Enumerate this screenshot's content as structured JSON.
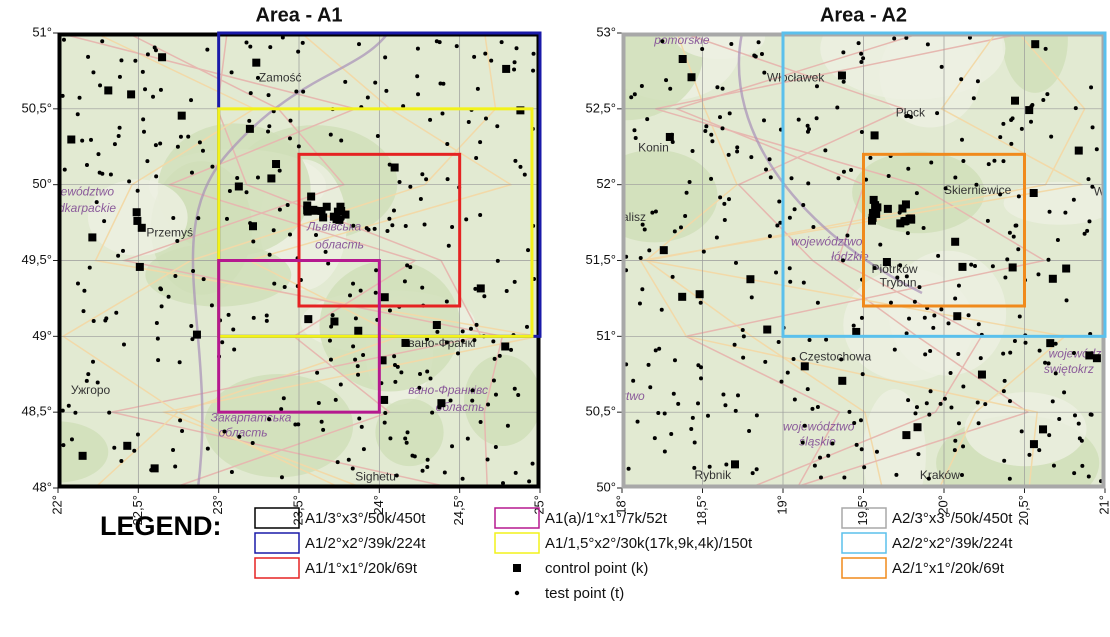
{
  "panels": [
    {
      "title": "Area - A1",
      "xlim": [
        22,
        25
      ],
      "ylim": [
        48,
        51
      ],
      "xticks": [
        {
          "value": 22,
          "label": "22°"
        },
        {
          "value": 22.5,
          "label": "22,5°"
        },
        {
          "value": 23,
          "label": "23°"
        },
        {
          "value": 23.5,
          "label": "23,5°"
        },
        {
          "value": 24,
          "label": "24°"
        },
        {
          "value": 24.5,
          "label": "24,5°"
        },
        {
          "value": 25,
          "label": "25°"
        }
      ],
      "yticks": [
        {
          "value": 48,
          "label": "48°"
        },
        {
          "value": 48.5,
          "label": "48,5°"
        },
        {
          "value": 49,
          "label": "49°"
        },
        {
          "value": 49.5,
          "label": "49,5°"
        },
        {
          "value": 50,
          "label": "50°"
        },
        {
          "value": 50.5,
          "label": "50,5°"
        },
        {
          "value": 51,
          "label": "51°"
        }
      ],
      "regions": [
        {
          "name": "A1/3°x3°/50k/450t",
          "color": "#000000",
          "bounds": [
            22,
            25,
            48,
            51
          ]
        },
        {
          "name": "A1/2°x2°/39k/224t",
          "color": "#1a1aa8",
          "bounds": [
            23,
            25,
            49,
            51
          ]
        },
        {
          "name": "A1/1,5°x2°/30k(17k,9k,4k)/150t",
          "color": "#f2f21a",
          "bounds": [
            23,
            24.95,
            49,
            50.5
          ]
        },
        {
          "name": "A1/1°x1°/20k/69t",
          "color": "#e52222",
          "bounds": [
            23.5,
            24.5,
            49.2,
            50.2
          ]
        },
        {
          "name": "A1(a)/1°x1°/7k/52t",
          "color": "#b5198f",
          "bounds": [
            23,
            24,
            48.5,
            49.5
          ]
        }
      ],
      "places": [
        {
          "text": "Zamość",
          "lon": 23.25,
          "lat": 50.7,
          "kind": "city"
        },
        {
          "text": "jewództwo",
          "lon": 22.0,
          "lat": 49.95,
          "kind": "region"
        },
        {
          "text": "dkarpackie",
          "lon": 22.0,
          "lat": 49.84,
          "kind": "region"
        },
        {
          "text": "Przemyś",
          "lon": 22.55,
          "lat": 49.68,
          "kind": "city"
        },
        {
          "text": "Львівська",
          "lon": 23.55,
          "lat": 49.72,
          "kind": "region"
        },
        {
          "text": "область",
          "lon": 23.6,
          "lat": 49.6,
          "kind": "region"
        },
        {
          "text": "Ужгоро",
          "lon": 22.08,
          "lat": 48.64,
          "kind": "city"
        },
        {
          "text": "Закарпатська",
          "lon": 22.95,
          "lat": 48.46,
          "kind": "region"
        },
        {
          "text": "область",
          "lon": 23.0,
          "lat": 48.36,
          "kind": "region"
        },
        {
          "text": "вано-Франкі",
          "lon": 24.18,
          "lat": 48.95,
          "kind": "city"
        },
        {
          "text": "вано-Франківс",
          "lon": 24.18,
          "lat": 48.64,
          "kind": "region"
        },
        {
          "text": "область",
          "lon": 24.35,
          "lat": 48.53,
          "kind": "region"
        },
        {
          "text": "Sighetu",
          "lon": 23.85,
          "lat": 48.07,
          "kind": "city"
        }
      ]
    },
    {
      "title": "Area - A2",
      "xlim": [
        18,
        21
      ],
      "ylim": [
        50,
        53
      ],
      "xticks": [
        {
          "value": 18,
          "label": "18°"
        },
        {
          "value": 18.5,
          "label": "18,5°"
        },
        {
          "value": 19,
          "label": "19°"
        },
        {
          "value": 19.5,
          "label": "19,5°"
        },
        {
          "value": 20,
          "label": "20°"
        },
        {
          "value": 20.5,
          "label": "20,5°"
        },
        {
          "value": 21,
          "label": "21°"
        }
      ],
      "yticks": [
        {
          "value": 50,
          "label": "50°"
        },
        {
          "value": 50.5,
          "label": "50,5°"
        },
        {
          "value": 51,
          "label": "51°"
        },
        {
          "value": 51.5,
          "label": "51,5°"
        },
        {
          "value": 52,
          "label": "52°"
        },
        {
          "value": 52.5,
          "label": "52,5°"
        },
        {
          "value": 53,
          "label": "53°"
        }
      ],
      "regions": [
        {
          "name": "A2/3°x3°/50k/450t",
          "color": "#a8a8a8",
          "bounds": [
            18,
            21,
            50,
            53
          ]
        },
        {
          "name": "A2/2°x2°/39k/224t",
          "color": "#5bc0ec",
          "bounds": [
            19,
            21,
            51,
            53
          ]
        },
        {
          "name": "A2/1°x1°/20k/69t",
          "color": "#f08a1c",
          "bounds": [
            19.5,
            20.5,
            51.2,
            52.2
          ]
        }
      ],
      "places": [
        {
          "text": "pomorskie",
          "lon": 18.2,
          "lat": 52.95,
          "kind": "region"
        },
        {
          "text": "Włocławek",
          "lon": 18.9,
          "lat": 52.7,
          "kind": "city"
        },
        {
          "text": "Konin",
          "lon": 18.1,
          "lat": 52.24,
          "kind": "city"
        },
        {
          "text": "Płock",
          "lon": 19.7,
          "lat": 52.47,
          "kind": "city"
        },
        {
          "text": "Skierniewice",
          "lon": 20.0,
          "lat": 51.96,
          "kind": "city"
        },
        {
          "text": "alisz",
          "lon": 18.0,
          "lat": 51.78,
          "kind": "city"
        },
        {
          "text": "War",
          "lon": 20.93,
          "lat": 51.95,
          "kind": "city"
        },
        {
          "text": "województwo",
          "lon": 19.05,
          "lat": 51.62,
          "kind": "region"
        },
        {
          "text": "łódzkie",
          "lon": 19.3,
          "lat": 51.52,
          "kind": "region"
        },
        {
          "text": "Piotrków",
          "lon": 19.55,
          "lat": 51.44,
          "kind": "city"
        },
        {
          "text": "Trybun",
          "lon": 19.6,
          "lat": 51.35,
          "kind": "city"
        },
        {
          "text": "Częstochowa",
          "lon": 19.1,
          "lat": 50.86,
          "kind": "city"
        },
        {
          "text": "rtwo",
          "lon": 18.0,
          "lat": 50.6,
          "kind": "region"
        },
        {
          "text": "województwo",
          "lon": 19.0,
          "lat": 50.4,
          "kind": "region"
        },
        {
          "text": "śląskie",
          "lon": 19.1,
          "lat": 50.3,
          "kind": "region"
        },
        {
          "text": "wojewódz",
          "lon": 20.65,
          "lat": 50.88,
          "kind": "region"
        },
        {
          "text": "świętokrz",
          "lon": 20.62,
          "lat": 50.78,
          "kind": "region"
        },
        {
          "text": "Rybnik",
          "lon": 18.45,
          "lat": 50.08,
          "kind": "city"
        },
        {
          "text": "Kraków",
          "lon": 19.85,
          "lat": 50.08,
          "kind": "city"
        }
      ]
    }
  ],
  "legend": {
    "title": "LEGEND:",
    "control_point": "control point (k)",
    "test_point": "test point (t)"
  }
}
